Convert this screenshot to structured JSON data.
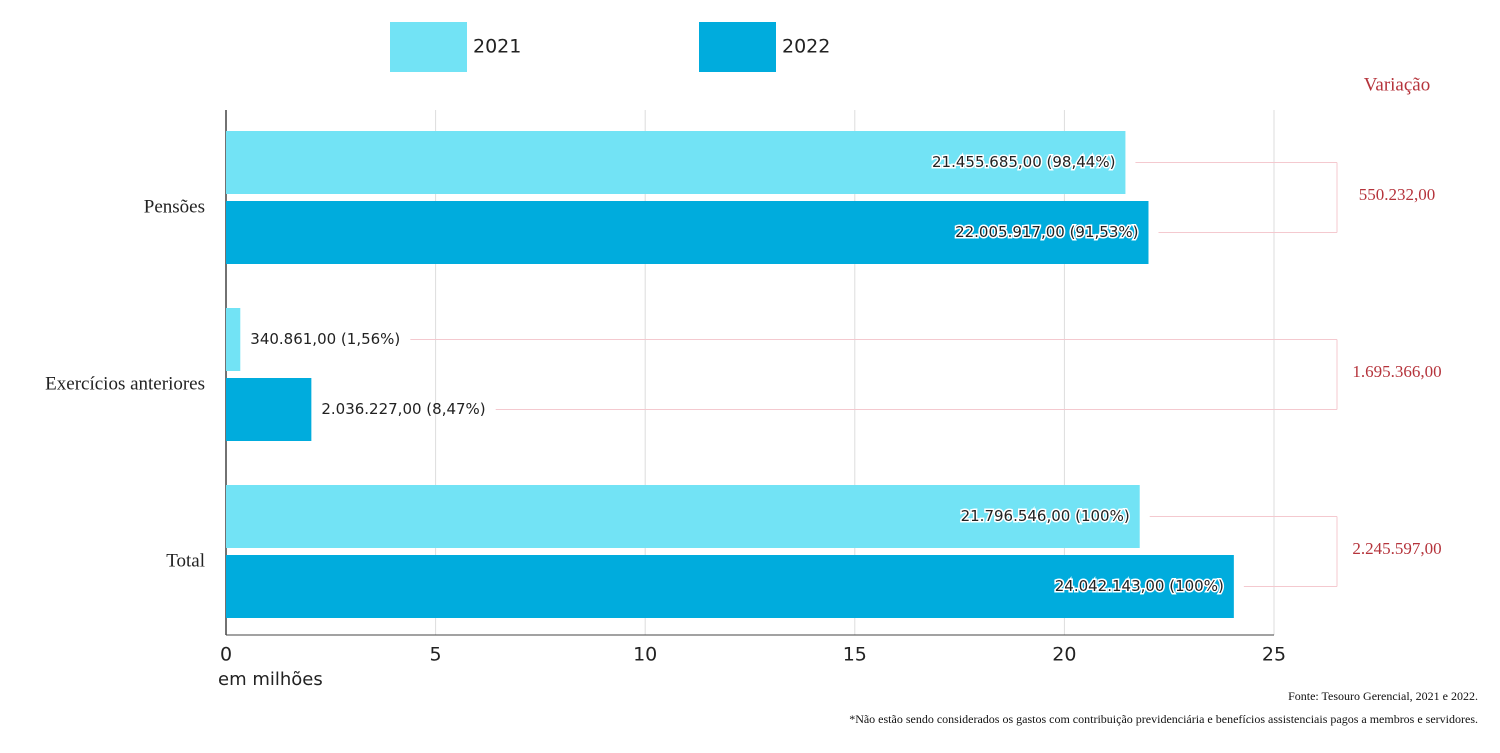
{
  "chart_data": {
    "type": "bar",
    "orientation": "horizontal",
    "categories": [
      "Pensões",
      "Exercícios anteriores",
      "Total"
    ],
    "series": [
      {
        "name": "2021",
        "color": "#72e3f5",
        "values": [
          21.455685,
          0.340861,
          21.796546
        ],
        "value_labels": [
          "21.455.685,00 (98,44%)",
          "340.861,00 (1,56%)",
          "21.796.546,00 (100%)"
        ]
      },
      {
        "name": "2022",
        "color": "#00acdd",
        "values": [
          22.005917,
          2.036227,
          24.042143
        ],
        "value_labels": [
          "22.005.917,00 (91,53%)",
          "2.036.227,00 (8,47%)",
          "24.042.143,00 (100%)"
        ]
      }
    ],
    "xlim": [
      0,
      25
    ],
    "xticks": [
      0,
      5,
      10,
      15,
      20,
      25
    ],
    "xlabel": "em milhões",
    "grid": true,
    "legend": "top",
    "variation": {
      "title": "Variação",
      "labels": [
        "550.232,00",
        "1.695.366,00",
        "2.245.597,00"
      ],
      "color": "#b5333b"
    },
    "source": "Fonte: Tesouro Gerencial, 2021 e 2022.",
    "note": "*Não estão sendo considerados os gastos com contribuição previdenciária e benefícios assistenciais pagos a membros e servidores."
  }
}
